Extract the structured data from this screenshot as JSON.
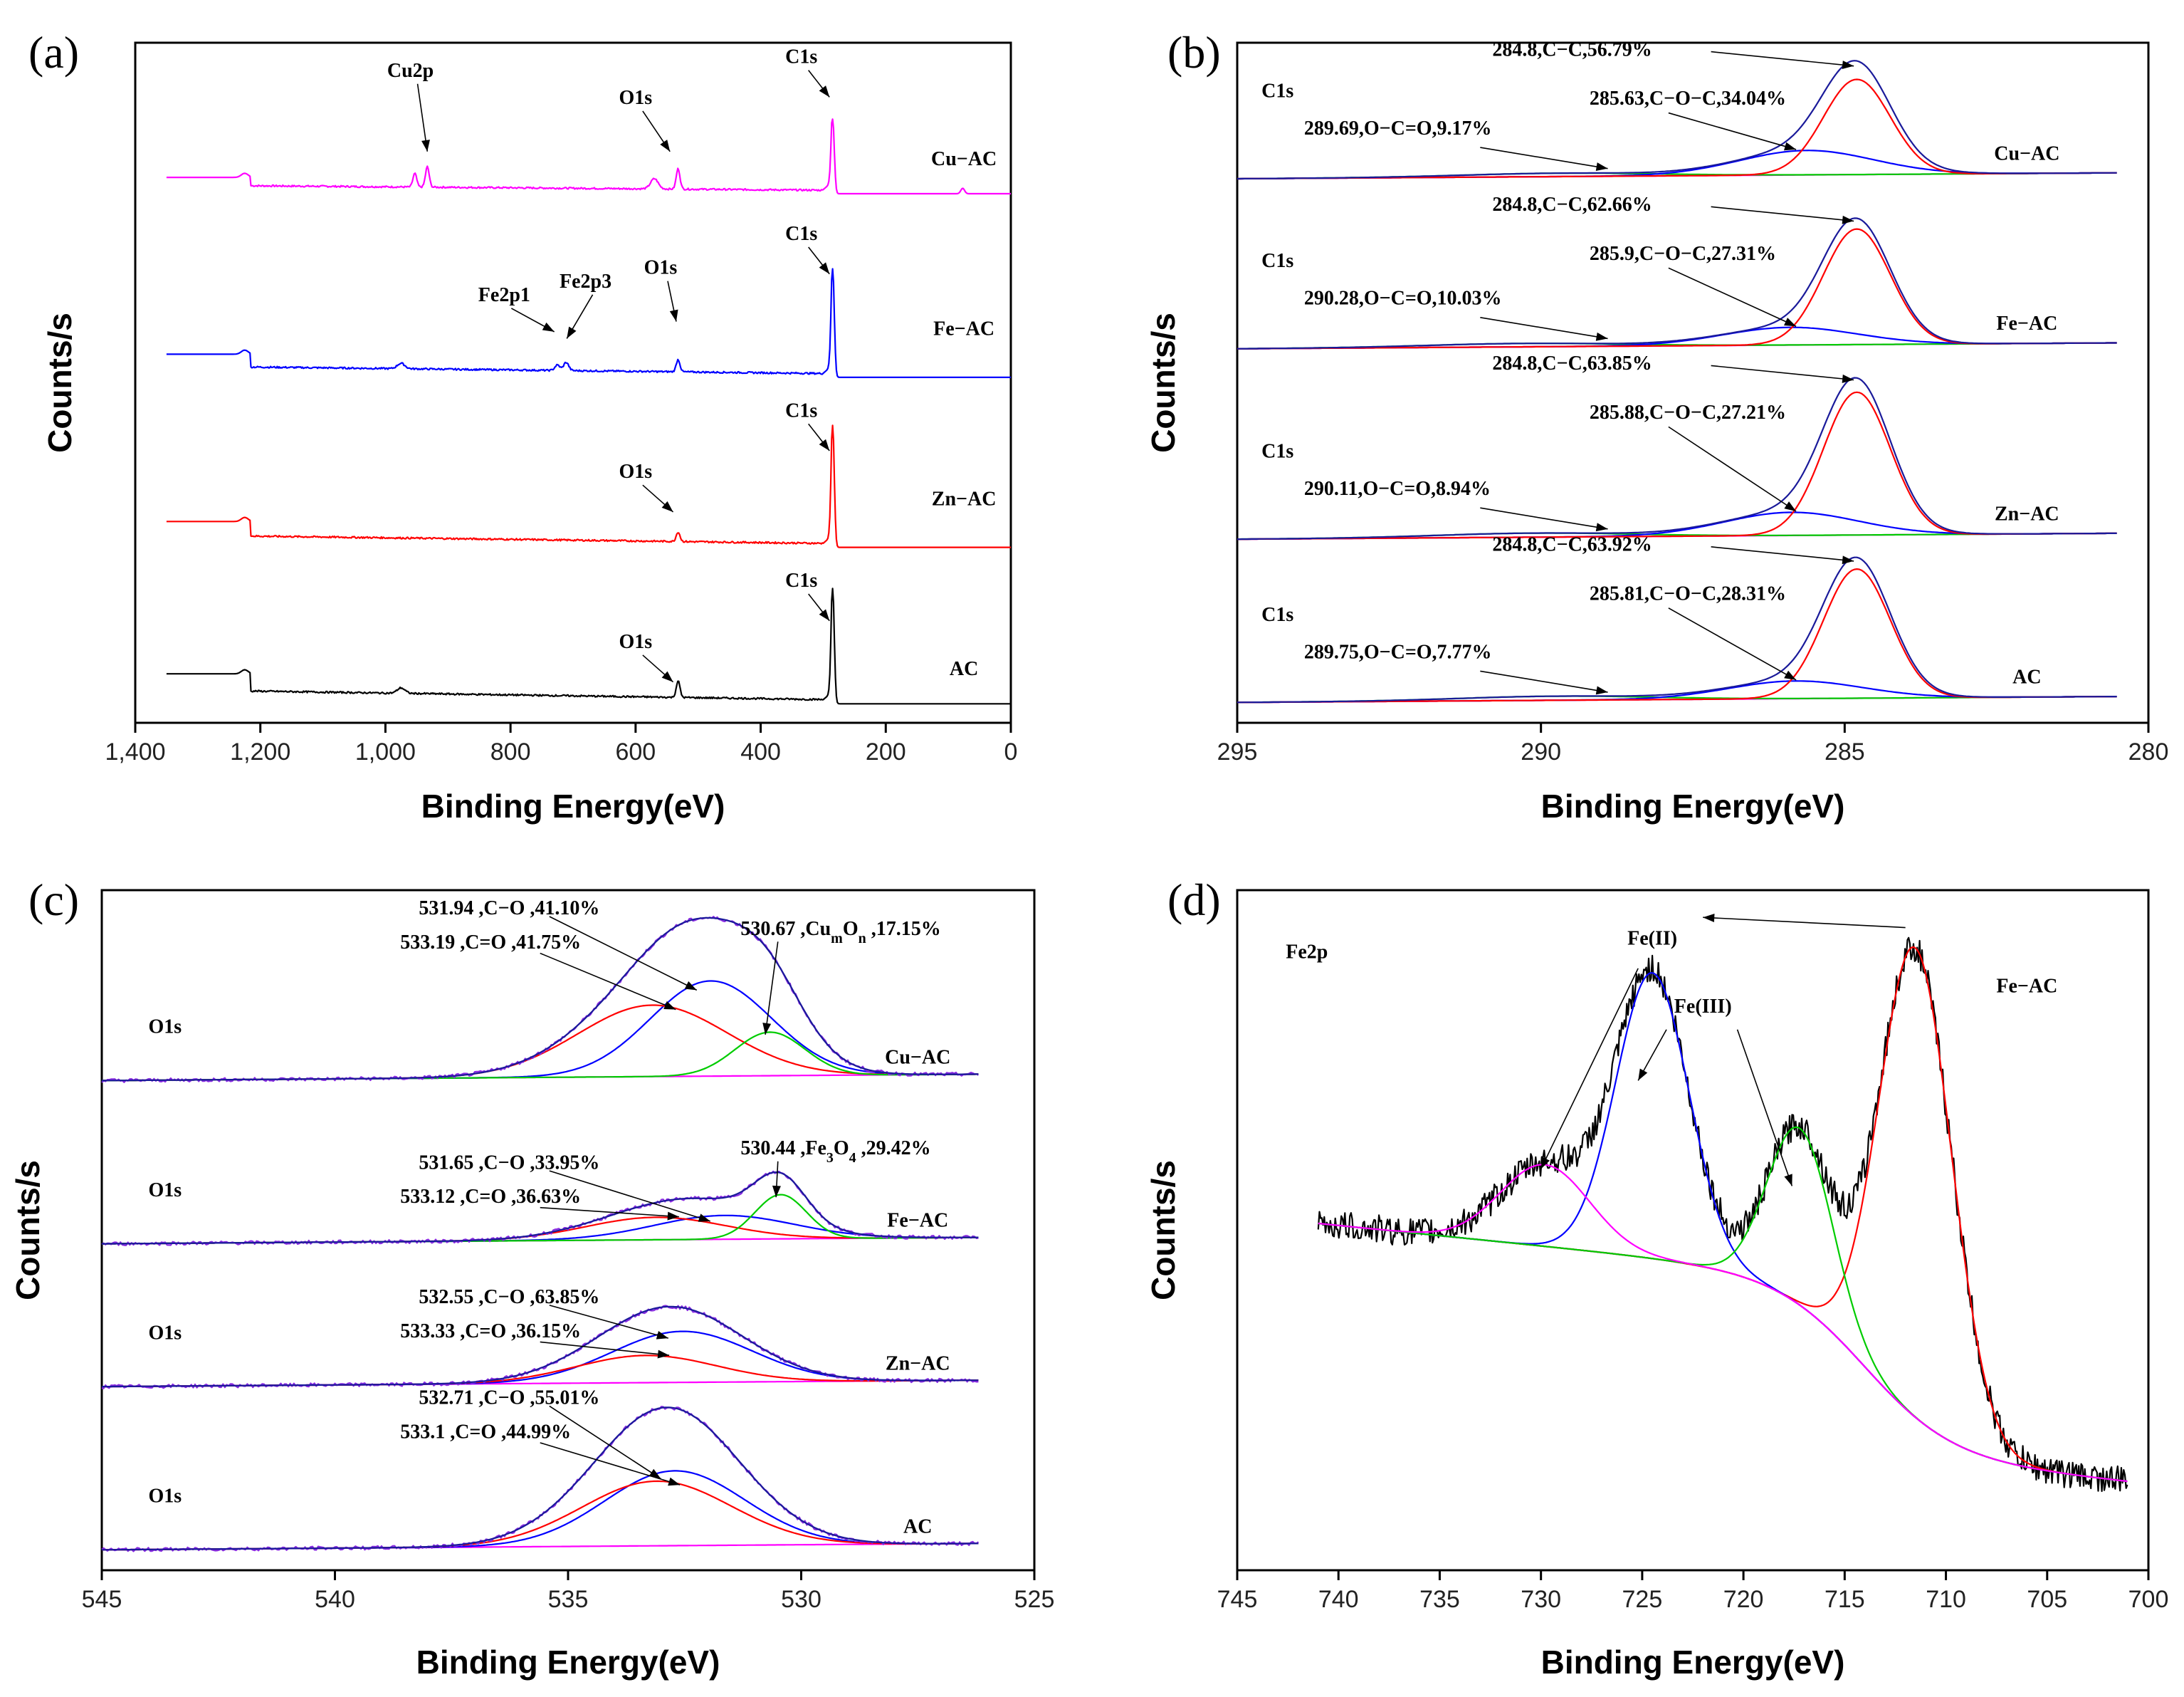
{
  "colors": {
    "axis": "#000000",
    "magenta": "#ff00ff",
    "blue": "#0000ff",
    "red": "#ff0000",
    "black": "#000000",
    "navy": "#1a1a9a",
    "green": "#00cc00",
    "purple": "#8a2be2"
  },
  "chart_data": [
    {
      "id": "a",
      "type": "line",
      "panel_label": "(a)",
      "xlabel": "Binding Energy(eV)",
      "ylabel": "Counts/s",
      "xlim": [
        1400,
        0
      ],
      "xticks": [
        1400,
        1200,
        1000,
        800,
        600,
        400,
        200,
        0
      ],
      "xtick_labels": [
        "1,400",
        "1,200",
        "1,000",
        "800",
        "600",
        "400",
        "200",
        "0"
      ],
      "ylim": [
        0,
        100
      ],
      "series": [
        {
          "name": "Cu-AC",
          "label": "Cu−AC",
          "color": "magenta",
          "offset": 78,
          "step": 2.2,
          "kind": "cu",
          "peaks": [
            [
              284.8,
              11,
              2.5
            ],
            [
              532,
              3,
              3
            ],
            [
              570,
              1.5,
              6
            ],
            [
              933,
              3,
              3
            ],
            [
              953,
              2,
              3
            ],
            [
              77,
              0.8,
              3
            ]
          ]
        },
        {
          "name": "Fe-AC",
          "label": "Fe−AC",
          "color": "blue",
          "offset": 51,
          "step": 3.2,
          "kind": "fe",
          "peaks": [
            [
              284.8,
              16,
              2.5
            ],
            [
              532,
              1.8,
              3
            ],
            [
              711,
              1.2,
              4
            ],
            [
              725,
              0.8,
              4
            ],
            [
              975,
              0.8,
              6
            ]
          ]
        },
        {
          "name": "Zn-AC",
          "label": "Zn−AC",
          "color": "red",
          "offset": 26,
          "step": 3.6,
          "kind": "zn",
          "peaks": [
            [
              284.8,
              18,
              2.5
            ],
            [
              532,
              1.4,
              3
            ]
          ]
        },
        {
          "name": "AC",
          "label": "AC",
          "color": "black",
          "offset": 3,
          "step": 4.2,
          "kind": "ac",
          "peaks": [
            [
              284.8,
              17,
              2.5
            ],
            [
              532,
              2.4,
              3
            ],
            [
              975,
              0.8,
              6
            ]
          ]
        }
      ],
      "annotations": [
        {
          "text": "Cu2p",
          "x": 960,
          "y": 95,
          "ax": 933,
          "ay": 84
        },
        {
          "text": "O1s",
          "x": 600,
          "y": 91,
          "ax": 545,
          "ay": 84
        },
        {
          "text": "C1s",
          "x": 335,
          "y": 97,
          "ax": 290,
          "ay": 92
        },
        {
          "text": "C1s",
          "x": 335,
          "y": 71,
          "ax": 290,
          "ay": 66
        },
        {
          "text": "O1s",
          "x": 560,
          "y": 66,
          "ax": 535,
          "ay": 59
        },
        {
          "text": "Fe2p1",
          "x": 810,
          "y": 62,
          "ax": 730,
          "ay": 57.5
        },
        {
          "text": "Fe2p3",
          "x": 680,
          "y": 64,
          "ax": 710,
          "ay": 56.5
        },
        {
          "text": "C1s",
          "x": 335,
          "y": 45,
          "ax": 290,
          "ay": 40
        },
        {
          "text": "O1s",
          "x": 600,
          "y": 36,
          "ax": 540,
          "ay": 31
        },
        {
          "text": "C1s",
          "x": 335,
          "y": 20,
          "ax": 290,
          "ay": 15
        },
        {
          "text": "O1s",
          "x": 600,
          "y": 11,
          "ax": 540,
          "ay": 6
        }
      ],
      "series_labels": [
        {
          "text": "Cu−AC",
          "x": 75,
          "y": 82
        },
        {
          "text": "Fe−AC",
          "x": 75,
          "y": 57
        },
        {
          "text": "Zn−AC",
          "x": 75,
          "y": 32
        },
        {
          "text": "AC",
          "x": 75,
          "y": 7
        }
      ]
    },
    {
      "id": "b",
      "type": "line",
      "panel_label": "(b)",
      "xlabel": "Binding Energy(eV)",
      "ylabel": "Counts/s",
      "xlim": [
        295,
        280
      ],
      "xticks": [
        295,
        290,
        285,
        280
      ],
      "xtick_labels": [
        "295",
        "290",
        "285",
        "280"
      ],
      "ylim": [
        0,
        100
      ],
      "groups": [
        {
          "name": "Cu-AC",
          "label": "Cu−AC",
          "base": 80,
          "c1s": "C1s",
          "cc": [
            284.8,
            14
          ],
          "coc": [
            285.63,
            3.6
          ],
          "occ": [
            289.69,
            0.5
          ],
          "labels": [
            "284.8,C−C,56.79%",
            "285.63,C−O−C,34.04%",
            "289.69,O−C=O,9.17%"
          ]
        },
        {
          "name": "Fe-AC",
          "label": "Fe−AC",
          "base": 55,
          "c1s": "C1s",
          "cc": [
            284.8,
            17
          ],
          "coc": [
            285.9,
            2.6
          ],
          "occ": [
            290.28,
            0.5
          ],
          "labels": [
            "284.8,C−C,62.66%",
            "285.9,C−O−C,27.31%",
            "290.28,O−C=O,10.03%"
          ]
        },
        {
          "name": "Zn-AC",
          "label": "Zn−AC",
          "base": 27,
          "c1s": "C1s",
          "cc": [
            284.8,
            21
          ],
          "coc": [
            285.88,
            3.4
          ],
          "occ": [
            290.11,
            0.6
          ],
          "labels": [
            "284.8,C−C,63.85%",
            "285.88,C−O−C,27.21%",
            "290.11,O−C=O,8.94%"
          ]
        },
        {
          "name": "AC",
          "label": "AC",
          "base": 3,
          "c1s": "C1s",
          "cc": [
            284.8,
            19
          ],
          "coc": [
            285.81,
            2.6
          ],
          "occ": [
            289.75,
            0.6
          ],
          "labels": [
            "284.8,C−C,63.92%",
            "285.81,C−O−C,28.31%",
            "289.75,O−C=O,7.77%"
          ]
        }
      ]
    },
    {
      "id": "c",
      "type": "line",
      "panel_label": "(c)",
      "xlabel": "Binding Energy(eV)",
      "ylabel": "Counts/s",
      "xlim": [
        545,
        525
      ],
      "xticks": [
        545,
        540,
        535,
        530,
        525
      ],
      "xtick_labels": [
        "545",
        "540",
        "535",
        "530",
        "525"
      ],
      "ylim": [
        0,
        100
      ],
      "groups": [
        {
          "name": "Cu-AC",
          "label": "Cu−AC",
          "base": 72,
          "o1s": "O1s",
          "comps": [
            [
              531.94,
              14,
              1.3,
              "blue"
            ],
            [
              533.19,
              10.5,
              1.6,
              "red"
            ],
            [
              530.67,
              6.4,
              0.75,
              "green"
            ]
          ],
          "labels": [
            "531.94 ,C−O ,41.10%",
            "533.19 ,C=O ,41.75%"
          ],
          "extra_pre": "530.67 ,Cu",
          "extra_sub1": "m",
          "extra_mid": "O",
          "extra_sub2": "n",
          "extra_post": " ,17.15%"
        },
        {
          "name": "Fe-AC",
          "label": "Fe−AC",
          "base": 48,
          "o1s": "O1s",
          "comps": [
            [
              531.65,
              3.5,
              1.5,
              "blue"
            ],
            [
              533.12,
              3.3,
              1.5,
              "red"
            ],
            [
              530.44,
              6.5,
              0.55,
              "green"
            ]
          ],
          "labels": [
            "531.65 ,C−O ,33.95%",
            "533.12 ,C=O ,36.63%"
          ],
          "extra_pre": "530.44 ,Fe",
          "extra_sub1": "3",
          "extra_mid": "O",
          "extra_sub2": "4",
          "extra_post": " ,29.42%"
        },
        {
          "name": "Zn-AC",
          "label": "Zn−AC",
          "base": 27,
          "o1s": "O1s",
          "comps": [
            [
              532.55,
              7.5,
              1.5,
              "blue"
            ],
            [
              533.33,
              4,
              1.5,
              "red"
            ]
          ],
          "labels": [
            "532.55 ,C−O ,63.85%",
            "533.33 ,C=O ,36.15%"
          ]
        },
        {
          "name": "AC",
          "label": "AC",
          "base": 3,
          "o1s": "O1s",
          "comps": [
            [
              532.71,
              11,
              1.5,
              "blue"
            ],
            [
              533.1,
              9.5,
              1.6,
              "red"
            ]
          ],
          "labels": [
            "532.71 ,C−O ,55.01%",
            "533.1 ,C=O ,44.99%"
          ]
        }
      ]
    },
    {
      "id": "d",
      "type": "line",
      "panel_label": "(d)",
      "xlabel": "Binding Energy(eV)",
      "ylabel": "Counts/s",
      "xlim": [
        745,
        700
      ],
      "xticks": [
        745,
        740,
        735,
        730,
        725,
        720,
        715,
        710,
        705,
        700
      ],
      "xtick_labels": [
        "745",
        "740",
        "735",
        "730",
        "725",
        "720",
        "715",
        "710",
        "705",
        "700"
      ],
      "ylim": [
        0,
        100
      ],
      "sample": "Fe−AC",
      "region": "Fe2p",
      "peaks": [
        [
          711.5,
          69,
          1.8,
          "red"
        ],
        [
          724.5,
          42,
          1.8,
          "blue"
        ],
        [
          717.2,
          26,
          1.6,
          "green"
        ],
        [
          729.8,
          12,
          2.2,
          "magenta"
        ]
      ],
      "fe2_label": "Fe(II)",
      "fe3_label": "Fe(III)"
    }
  ]
}
